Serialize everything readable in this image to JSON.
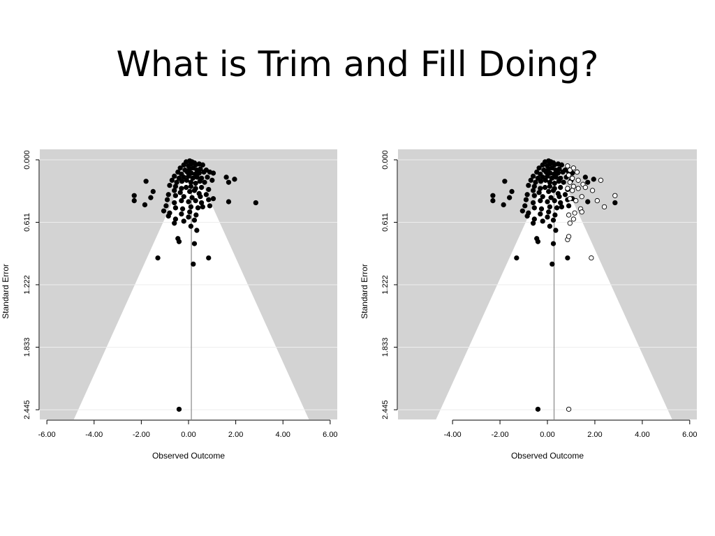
{
  "slide": {
    "title": "What is Trim and Fill Doing?"
  },
  "colors": {
    "panel": "#d3d3d3",
    "funnel": "#ffffff",
    "grid": "#eeeeee",
    "point": "#000000",
    "line": "#888888"
  },
  "chart_data": [
    {
      "type": "scatter",
      "title": "",
      "xlabel": "Observed Outcome",
      "ylabel": "Standard Error",
      "xlim": [
        -6.3,
        6.3
      ],
      "ylim": [
        0,
        2.54
      ],
      "y_reversed": true,
      "xticks": [
        -6,
        -4,
        -2,
        0,
        2,
        4,
        6
      ],
      "xtick_labels": [
        "-6.00",
        "-4.00",
        "-2.00",
        "0.00",
        "2.00",
        "4.00",
        "6.00"
      ],
      "yticks": [
        0,
        0.611,
        1.222,
        1.833,
        2.445
      ],
      "ytick_labels": [
        "0.000",
        "0.611",
        "1.222",
        "1.833",
        "2.445"
      ],
      "center": 0.12,
      "funnel_z": 1.96,
      "grid": true,
      "series": [
        {
          "filled": true,
          "points": [
            [
              -0.1,
              0.02
            ],
            [
              0.05,
              0.01
            ],
            [
              0.15,
              0.02
            ],
            [
              0.25,
              0.03
            ],
            [
              -0.2,
              0.05
            ],
            [
              0.0,
              0.06
            ],
            [
              0.1,
              0.04
            ],
            [
              0.3,
              0.05
            ],
            [
              0.45,
              0.04
            ],
            [
              0.6,
              0.05
            ],
            [
              -0.35,
              0.08
            ],
            [
              -0.15,
              0.1
            ],
            [
              0.05,
              0.09
            ],
            [
              0.2,
              0.08
            ],
            [
              0.35,
              0.1
            ],
            [
              0.5,
              0.09
            ],
            [
              0.75,
              0.1
            ],
            [
              -0.45,
              0.12
            ],
            [
              -0.3,
              0.14
            ],
            [
              -0.05,
              0.12
            ],
            [
              0.12,
              0.13
            ],
            [
              0.28,
              0.14
            ],
            [
              0.45,
              0.13
            ],
            [
              0.65,
              0.12
            ],
            [
              0.9,
              0.12
            ],
            [
              1.05,
              0.13
            ],
            [
              -0.6,
              0.16
            ],
            [
              -0.4,
              0.18
            ],
            [
              -0.2,
              0.17
            ],
            [
              0.0,
              0.16
            ],
            [
              0.18,
              0.18
            ],
            [
              0.36,
              0.17
            ],
            [
              0.55,
              0.18
            ],
            [
              0.8,
              0.17
            ],
            [
              -0.7,
              0.2
            ],
            [
              -0.5,
              0.22
            ],
            [
              -0.28,
              0.21
            ],
            [
              -0.08,
              0.2
            ],
            [
              0.1,
              0.22
            ],
            [
              0.3,
              0.23
            ],
            [
              0.48,
              0.21
            ],
            [
              0.68,
              0.22
            ],
            [
              1.0,
              0.2
            ],
            [
              1.6,
              0.17
            ],
            [
              1.95,
              0.19
            ],
            [
              1.7,
              0.22
            ],
            [
              -0.55,
              0.26
            ],
            [
              -0.3,
              0.28
            ],
            [
              -0.1,
              0.27
            ],
            [
              0.1,
              0.26
            ],
            [
              0.3,
              0.28
            ],
            [
              0.55,
              0.27
            ],
            [
              0.85,
              0.29
            ],
            [
              -1.8,
              0.21
            ],
            [
              -0.8,
              0.25
            ],
            [
              -0.6,
              0.3
            ],
            [
              -0.35,
              0.32
            ],
            [
              0.05,
              0.31
            ],
            [
              0.25,
              0.3
            ],
            [
              0.45,
              0.33
            ],
            [
              0.75,
              0.34
            ],
            [
              -1.5,
              0.31
            ],
            [
              -0.85,
              0.34
            ],
            [
              -0.55,
              0.35
            ],
            [
              -0.2,
              0.36
            ],
            [
              0.15,
              0.37
            ],
            [
              0.5,
              0.36
            ],
            [
              -2.3,
              0.35
            ],
            [
              -2.3,
              0.4
            ],
            [
              -1.85,
              0.44
            ],
            [
              -1.6,
              0.37
            ],
            [
              -0.9,
              0.39
            ],
            [
              -0.6,
              0.42
            ],
            [
              -0.3,
              0.4
            ],
            [
              0.0,
              0.41
            ],
            [
              0.3,
              0.4
            ],
            [
              0.55,
              0.42
            ],
            [
              0.85,
              0.39
            ],
            [
              1.05,
              0.38
            ],
            [
              1.7,
              0.41
            ],
            [
              2.85,
              0.42
            ],
            [
              -0.95,
              0.45
            ],
            [
              -0.55,
              0.47
            ],
            [
              -0.25,
              0.48
            ],
            [
              0.1,
              0.46
            ],
            [
              0.4,
              0.47
            ],
            [
              0.6,
              0.46
            ],
            [
              0.9,
              0.45
            ],
            [
              -1.05,
              0.5
            ],
            [
              -0.8,
              0.52
            ],
            [
              -0.3,
              0.53
            ],
            [
              0.05,
              0.51
            ],
            [
              0.32,
              0.54
            ],
            [
              -0.85,
              0.55
            ],
            [
              -0.55,
              0.58
            ],
            [
              0.0,
              0.56
            ],
            [
              0.25,
              0.59
            ],
            [
              -0.6,
              0.62
            ],
            [
              -0.2,
              0.6
            ],
            [
              0.1,
              0.65
            ],
            [
              0.35,
              0.69
            ],
            [
              -0.45,
              0.77
            ],
            [
              -0.4,
              0.8
            ],
            [
              0.25,
              0.82
            ],
            [
              -1.3,
              0.96
            ],
            [
              0.85,
              0.96
            ],
            [
              0.2,
              1.02
            ],
            [
              -0.4,
              2.44
            ]
          ]
        }
      ]
    },
    {
      "type": "scatter",
      "title": "",
      "xlabel": "Observed Outcome",
      "ylabel": "Standard Error",
      "xlim": [
        -6.3,
        6.3
      ],
      "ylim": [
        0,
        2.54
      ],
      "y_reversed": true,
      "xticks": [
        -4,
        -2,
        0,
        2,
        4,
        6
      ],
      "xtick_labels": [
        "-4.00",
        "-2.00",
        "0.00",
        "2.00",
        "4.00",
        "6.00"
      ],
      "yticks": [
        0,
        0.611,
        1.222,
        1.833,
        2.445
      ],
      "ytick_labels": [
        "0.000",
        "0.611",
        "1.222",
        "1.833",
        "2.445"
      ],
      "center": 0.28,
      "funnel_z": 1.96,
      "grid": true,
      "series": [
        {
          "filled": true,
          "points": [
            [
              -0.1,
              0.02
            ],
            [
              0.05,
              0.01
            ],
            [
              0.15,
              0.02
            ],
            [
              0.25,
              0.03
            ],
            [
              -0.2,
              0.05
            ],
            [
              0.0,
              0.06
            ],
            [
              0.1,
              0.04
            ],
            [
              0.3,
              0.05
            ],
            [
              0.45,
              0.04
            ],
            [
              0.6,
              0.05
            ],
            [
              -0.35,
              0.08
            ],
            [
              -0.15,
              0.1
            ],
            [
              0.05,
              0.09
            ],
            [
              0.2,
              0.08
            ],
            [
              0.35,
              0.1
            ],
            [
              0.5,
              0.09
            ],
            [
              0.75,
              0.1
            ],
            [
              -0.45,
              0.12
            ],
            [
              -0.3,
              0.14
            ],
            [
              -0.05,
              0.12
            ],
            [
              0.12,
              0.13
            ],
            [
              0.28,
              0.14
            ],
            [
              0.45,
              0.13
            ],
            [
              0.65,
              0.12
            ],
            [
              0.9,
              0.12
            ],
            [
              1.05,
              0.13
            ],
            [
              -0.6,
              0.16
            ],
            [
              -0.4,
              0.18
            ],
            [
              -0.2,
              0.17
            ],
            [
              0.0,
              0.16
            ],
            [
              0.18,
              0.18
            ],
            [
              0.36,
              0.17
            ],
            [
              0.55,
              0.18
            ],
            [
              0.8,
              0.17
            ],
            [
              -0.7,
              0.2
            ],
            [
              -0.5,
              0.22
            ],
            [
              -0.28,
              0.21
            ],
            [
              -0.08,
              0.2
            ],
            [
              0.1,
              0.22
            ],
            [
              0.3,
              0.23
            ],
            [
              0.48,
              0.21
            ],
            [
              0.68,
              0.22
            ],
            [
              1.0,
              0.2
            ],
            [
              1.6,
              0.17
            ],
            [
              1.95,
              0.19
            ],
            [
              1.7,
              0.22
            ],
            [
              -0.55,
              0.26
            ],
            [
              -0.3,
              0.28
            ],
            [
              -0.1,
              0.27
            ],
            [
              0.1,
              0.26
            ],
            [
              0.3,
              0.28
            ],
            [
              0.55,
              0.27
            ],
            [
              0.85,
              0.29
            ],
            [
              -1.8,
              0.21
            ],
            [
              -0.8,
              0.25
            ],
            [
              -0.6,
              0.3
            ],
            [
              -0.35,
              0.32
            ],
            [
              0.05,
              0.31
            ],
            [
              0.25,
              0.3
            ],
            [
              0.45,
              0.33
            ],
            [
              0.75,
              0.34
            ],
            [
              -1.5,
              0.31
            ],
            [
              -0.85,
              0.34
            ],
            [
              -0.55,
              0.35
            ],
            [
              -0.2,
              0.36
            ],
            [
              0.15,
              0.37
            ],
            [
              0.5,
              0.36
            ],
            [
              -2.3,
              0.35
            ],
            [
              -2.3,
              0.4
            ],
            [
              -1.85,
              0.44
            ],
            [
              -1.6,
              0.37
            ],
            [
              -0.9,
              0.39
            ],
            [
              -0.6,
              0.42
            ],
            [
              -0.3,
              0.4
            ],
            [
              0.0,
              0.41
            ],
            [
              0.3,
              0.4
            ],
            [
              0.55,
              0.42
            ],
            [
              0.85,
              0.39
            ],
            [
              1.05,
              0.38
            ],
            [
              1.7,
              0.41
            ],
            [
              2.85,
              0.42
            ],
            [
              -0.95,
              0.45
            ],
            [
              -0.55,
              0.47
            ],
            [
              -0.25,
              0.48
            ],
            [
              0.1,
              0.46
            ],
            [
              0.4,
              0.47
            ],
            [
              0.6,
              0.46
            ],
            [
              0.9,
              0.45
            ],
            [
              -1.05,
              0.5
            ],
            [
              -0.8,
              0.52
            ],
            [
              -0.3,
              0.53
            ],
            [
              0.05,
              0.51
            ],
            [
              0.32,
              0.54
            ],
            [
              -0.85,
              0.55
            ],
            [
              -0.55,
              0.58
            ],
            [
              0.0,
              0.56
            ],
            [
              0.25,
              0.59
            ],
            [
              -0.6,
              0.62
            ],
            [
              -0.2,
              0.6
            ],
            [
              0.1,
              0.65
            ],
            [
              0.35,
              0.69
            ],
            [
              -0.45,
              0.77
            ],
            [
              -0.4,
              0.8
            ],
            [
              0.25,
              0.82
            ],
            [
              -1.3,
              0.96
            ],
            [
              0.85,
              0.96
            ],
            [
              0.2,
              1.02
            ],
            [
              -0.4,
              2.44
            ]
          ]
        },
        {
          "filled": false,
          "points": [
            [
              0.85,
              0.06
            ],
            [
              0.95,
              0.1
            ],
            [
              1.1,
              0.08
            ],
            [
              1.25,
              0.12
            ],
            [
              0.9,
              0.15
            ],
            [
              1.05,
              0.18
            ],
            [
              1.3,
              0.2
            ],
            [
              1.5,
              0.24
            ],
            [
              0.95,
              0.22
            ],
            [
              1.1,
              0.26
            ],
            [
              0.85,
              0.28
            ],
            [
              1.05,
              0.3
            ],
            [
              1.3,
              0.28
            ],
            [
              1.6,
              0.27
            ],
            [
              2.25,
              0.2
            ],
            [
              1.9,
              0.3
            ],
            [
              2.1,
              0.4
            ],
            [
              2.4,
              0.46
            ],
            [
              2.85,
              0.35
            ],
            [
              1.45,
              0.36
            ],
            [
              1.2,
              0.4
            ],
            [
              0.95,
              0.38
            ],
            [
              1.4,
              0.48
            ],
            [
              1.15,
              0.52
            ],
            [
              0.9,
              0.54
            ],
            [
              1.45,
              0.51
            ],
            [
              1.1,
              0.58
            ],
            [
              0.95,
              0.62
            ],
            [
              0.85,
              0.78
            ],
            [
              0.9,
              0.75
            ],
            [
              1.85,
              0.96
            ],
            [
              0.9,
              2.44
            ]
          ]
        }
      ]
    }
  ]
}
